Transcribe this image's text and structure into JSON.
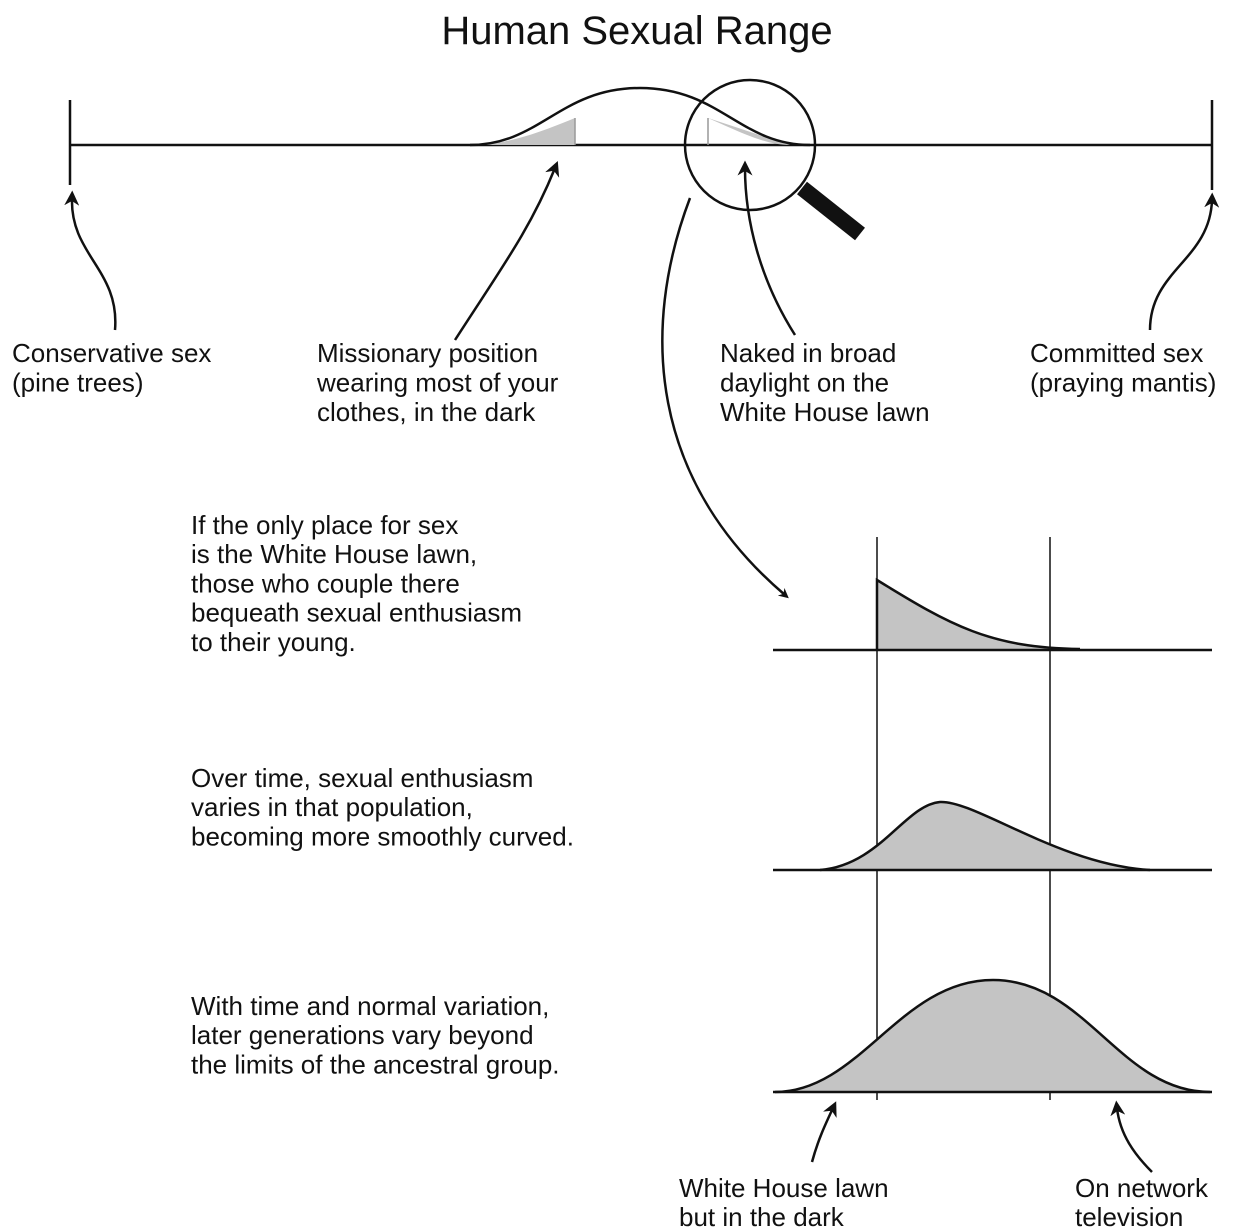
{
  "title": "Human Sexual Range",
  "labels": [
    {
      "lines": [
        "Conservative sex",
        "(pine trees)"
      ]
    },
    {
      "lines": [
        "Missionary position",
        "wearing most of your",
        "clothes, in the dark"
      ]
    },
    {
      "lines": [
        "Naked in broad",
        "daylight on the",
        "White House lawn"
      ]
    },
    {
      "lines": [
        "Committed sex",
        "(praying mantis)"
      ]
    }
  ],
  "descriptions": [
    {
      "lines": [
        "If the only place for sex",
        "is the White House lawn,",
        "those who couple there",
        "bequeath sexual enthusiasm",
        "to their young."
      ]
    },
    {
      "lines": [
        "Over time, sexual enthusiasm",
        "varies in that population,",
        "becoming more smoothly curved."
      ]
    },
    {
      "lines": [
        "With time and normal variation,",
        "later generations vary beyond",
        "the limits of the ancestral group."
      ]
    }
  ],
  "bottom_labels": [
    {
      "lines": [
        "White House lawn",
        "but in the dark"
      ]
    },
    {
      "lines": [
        "On network",
        "television"
      ]
    }
  ]
}
